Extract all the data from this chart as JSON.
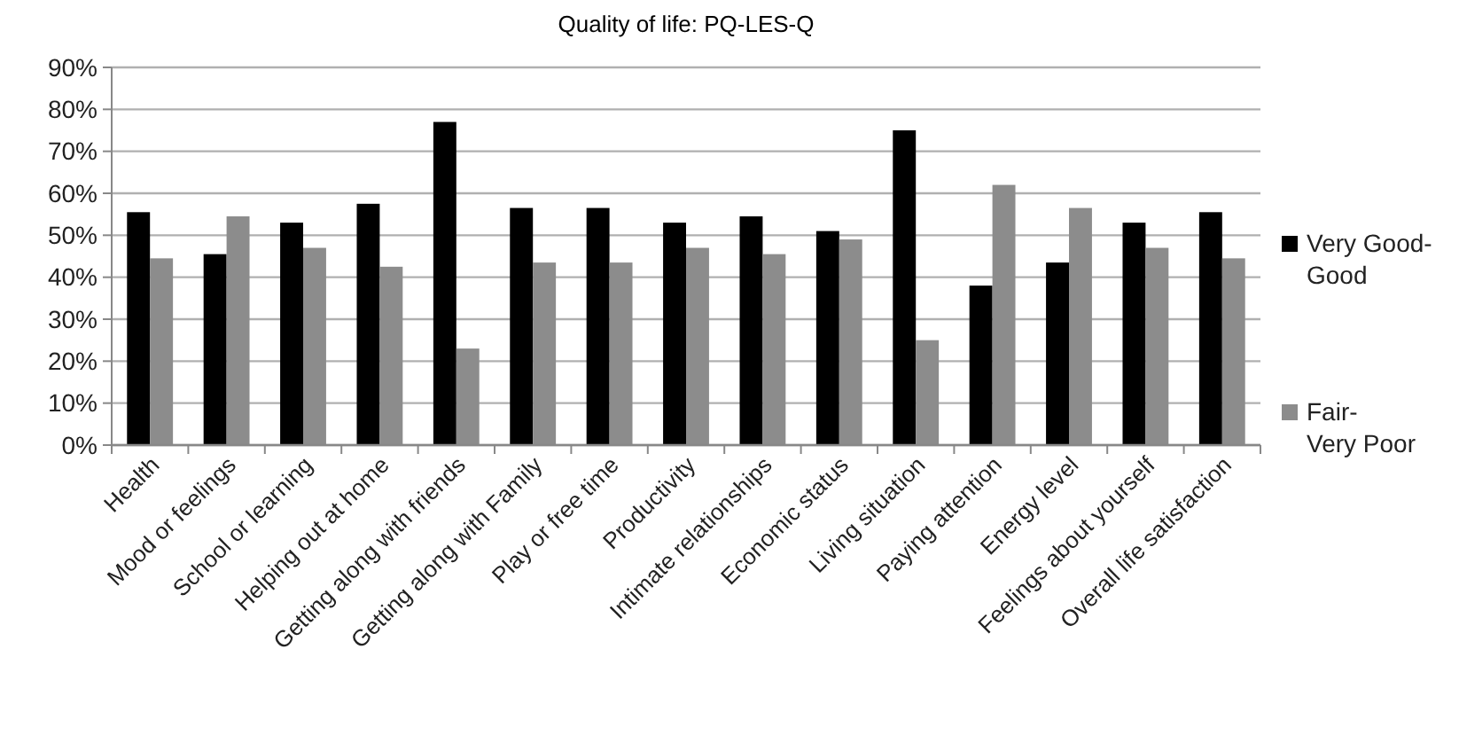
{
  "chart_data": {
    "type": "bar",
    "title": "Quality of life: PQ-LES-Q",
    "categories": [
      "Health",
      "Mood or feelings",
      "School or learning",
      "Helping out at home",
      "Getting along with friends",
      "Getting along with Family",
      "Play or free time",
      "Productivity",
      "Intimate relationships",
      "Economic status",
      "Living situation",
      "Paying attention",
      "Energy level",
      "Feelings about yourself",
      "Overall life satisfaction"
    ],
    "series": [
      {
        "name": "Very Good-Good",
        "color": "#000000",
        "values": [
          55.5,
          45.5,
          53,
          57.5,
          77,
          56.5,
          56.5,
          53,
          54.5,
          51,
          75,
          38,
          43.5,
          53,
          55.5
        ]
      },
      {
        "name": "Fair-Very Poor",
        "color": "#8c8c8c",
        "values": [
          44.5,
          54.5,
          47,
          42.5,
          23,
          43.5,
          43.5,
          47,
          45.5,
          49,
          25,
          62,
          56.5,
          47,
          44.5
        ]
      }
    ],
    "ylim": [
      0,
      90
    ],
    "yticks": [
      {
        "value": 0,
        "label": "0%"
      },
      {
        "value": 10,
        "label": "10%"
      },
      {
        "value": 20,
        "label": "20%"
      },
      {
        "value": 30,
        "label": "30%"
      },
      {
        "value": 40,
        "label": "40%"
      },
      {
        "value": 50,
        "label": "50%"
      },
      {
        "value": 60,
        "label": "60%"
      },
      {
        "value": 70,
        "label": "70%"
      },
      {
        "value": 80,
        "label": "80%"
      },
      {
        "value": 90,
        "label": "90%"
      }
    ],
    "grid": "y",
    "legend": "right"
  }
}
